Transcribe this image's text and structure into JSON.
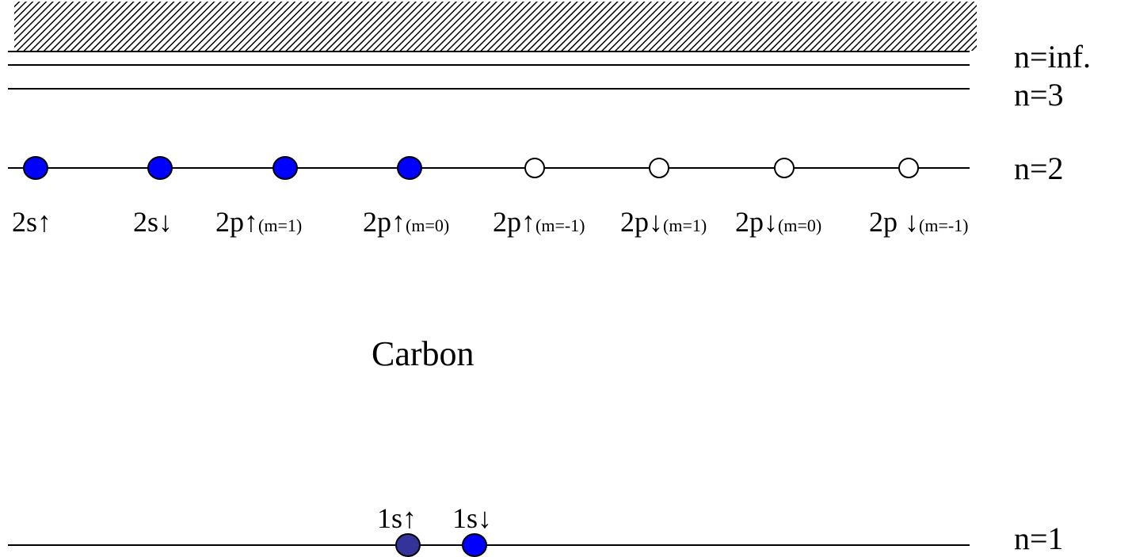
{
  "diagram": {
    "title": "Carbon",
    "levels": [
      {
        "label": "n=inf."
      },
      {
        "label": "n=3"
      },
      {
        "label": "n=2"
      },
      {
        "label": "n=1"
      }
    ],
    "n2_states": [
      {
        "main": "2s↑",
        "sub": "",
        "occupied": true
      },
      {
        "main": "2s↓",
        "sub": "",
        "occupied": true
      },
      {
        "main": "2p↑",
        "sub": "(m=1)",
        "occupied": true
      },
      {
        "main": "2p↑",
        "sub": "(m=0)",
        "occupied": true
      },
      {
        "main": "2p↑",
        "sub": "(m=-1)",
        "occupied": false
      },
      {
        "main": "2p↓",
        "sub": "(m=1)",
        "occupied": false
      },
      {
        "main": "2p↓",
        "sub": "(m=0)",
        "occupied": false
      },
      {
        "main": "2p ↓",
        "sub": "(m=-1)",
        "occupied": false
      }
    ],
    "n1_states": [
      {
        "main": "1s↑",
        "occupied": true
      },
      {
        "main": "1s↓",
        "occupied": true
      }
    ],
    "colors": {
      "electron": "#0000ff",
      "electron_1s_up": "#33339a",
      "line": "#000000",
      "continuum_hatch": "#000000",
      "hole_fill": "#ffffff"
    }
  }
}
